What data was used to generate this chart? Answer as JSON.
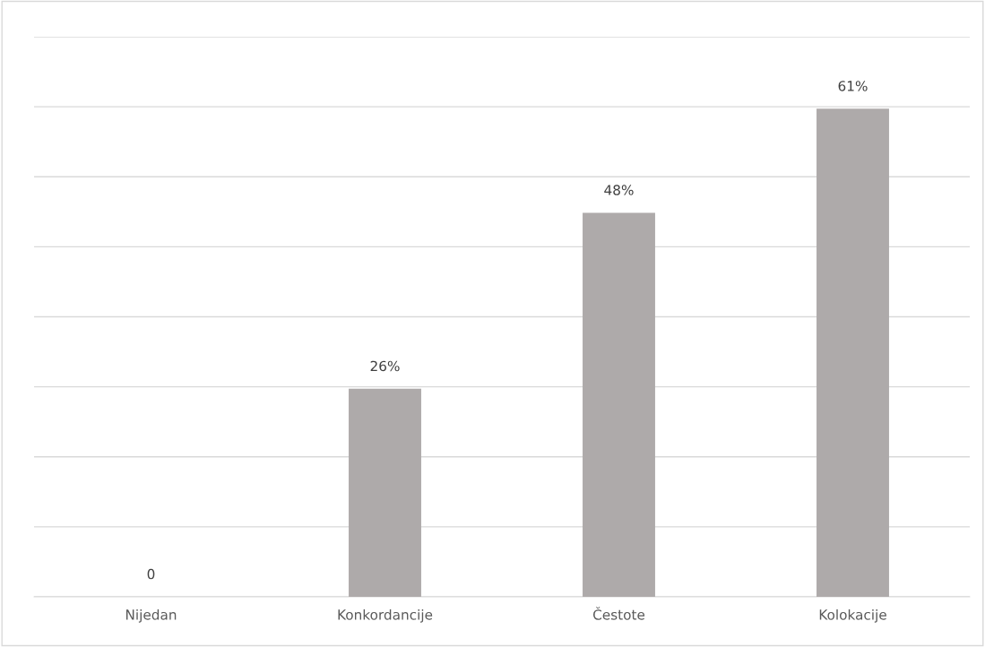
{
  "chart_data": {
    "type": "bar",
    "categories": [
      "Nijedan",
      "Konkordancije",
      "Čestote",
      "Kolokacije"
    ],
    "values": [
      0,
      26,
      48,
      61
    ],
    "value_labels": [
      "0",
      "26%",
      "48%",
      "61%"
    ],
    "color": "#aeaaaa",
    "ylim": [
      0,
      70
    ],
    "yticks": [
      {
        "value": 0,
        "label": null
      },
      {
        "value": 8.75,
        "label": null
      },
      {
        "value": 17.5,
        "label": null
      },
      {
        "value": 26.25,
        "label": null
      },
      {
        "value": 35,
        "label": null
      },
      {
        "value": 43.75,
        "label": null
      },
      {
        "value": 52.5,
        "label": null
      },
      {
        "value": 61.25,
        "label": null
      },
      {
        "value": 70,
        "label": null
      }
    ],
    "grid": "y",
    "tick_labels": "x"
  }
}
